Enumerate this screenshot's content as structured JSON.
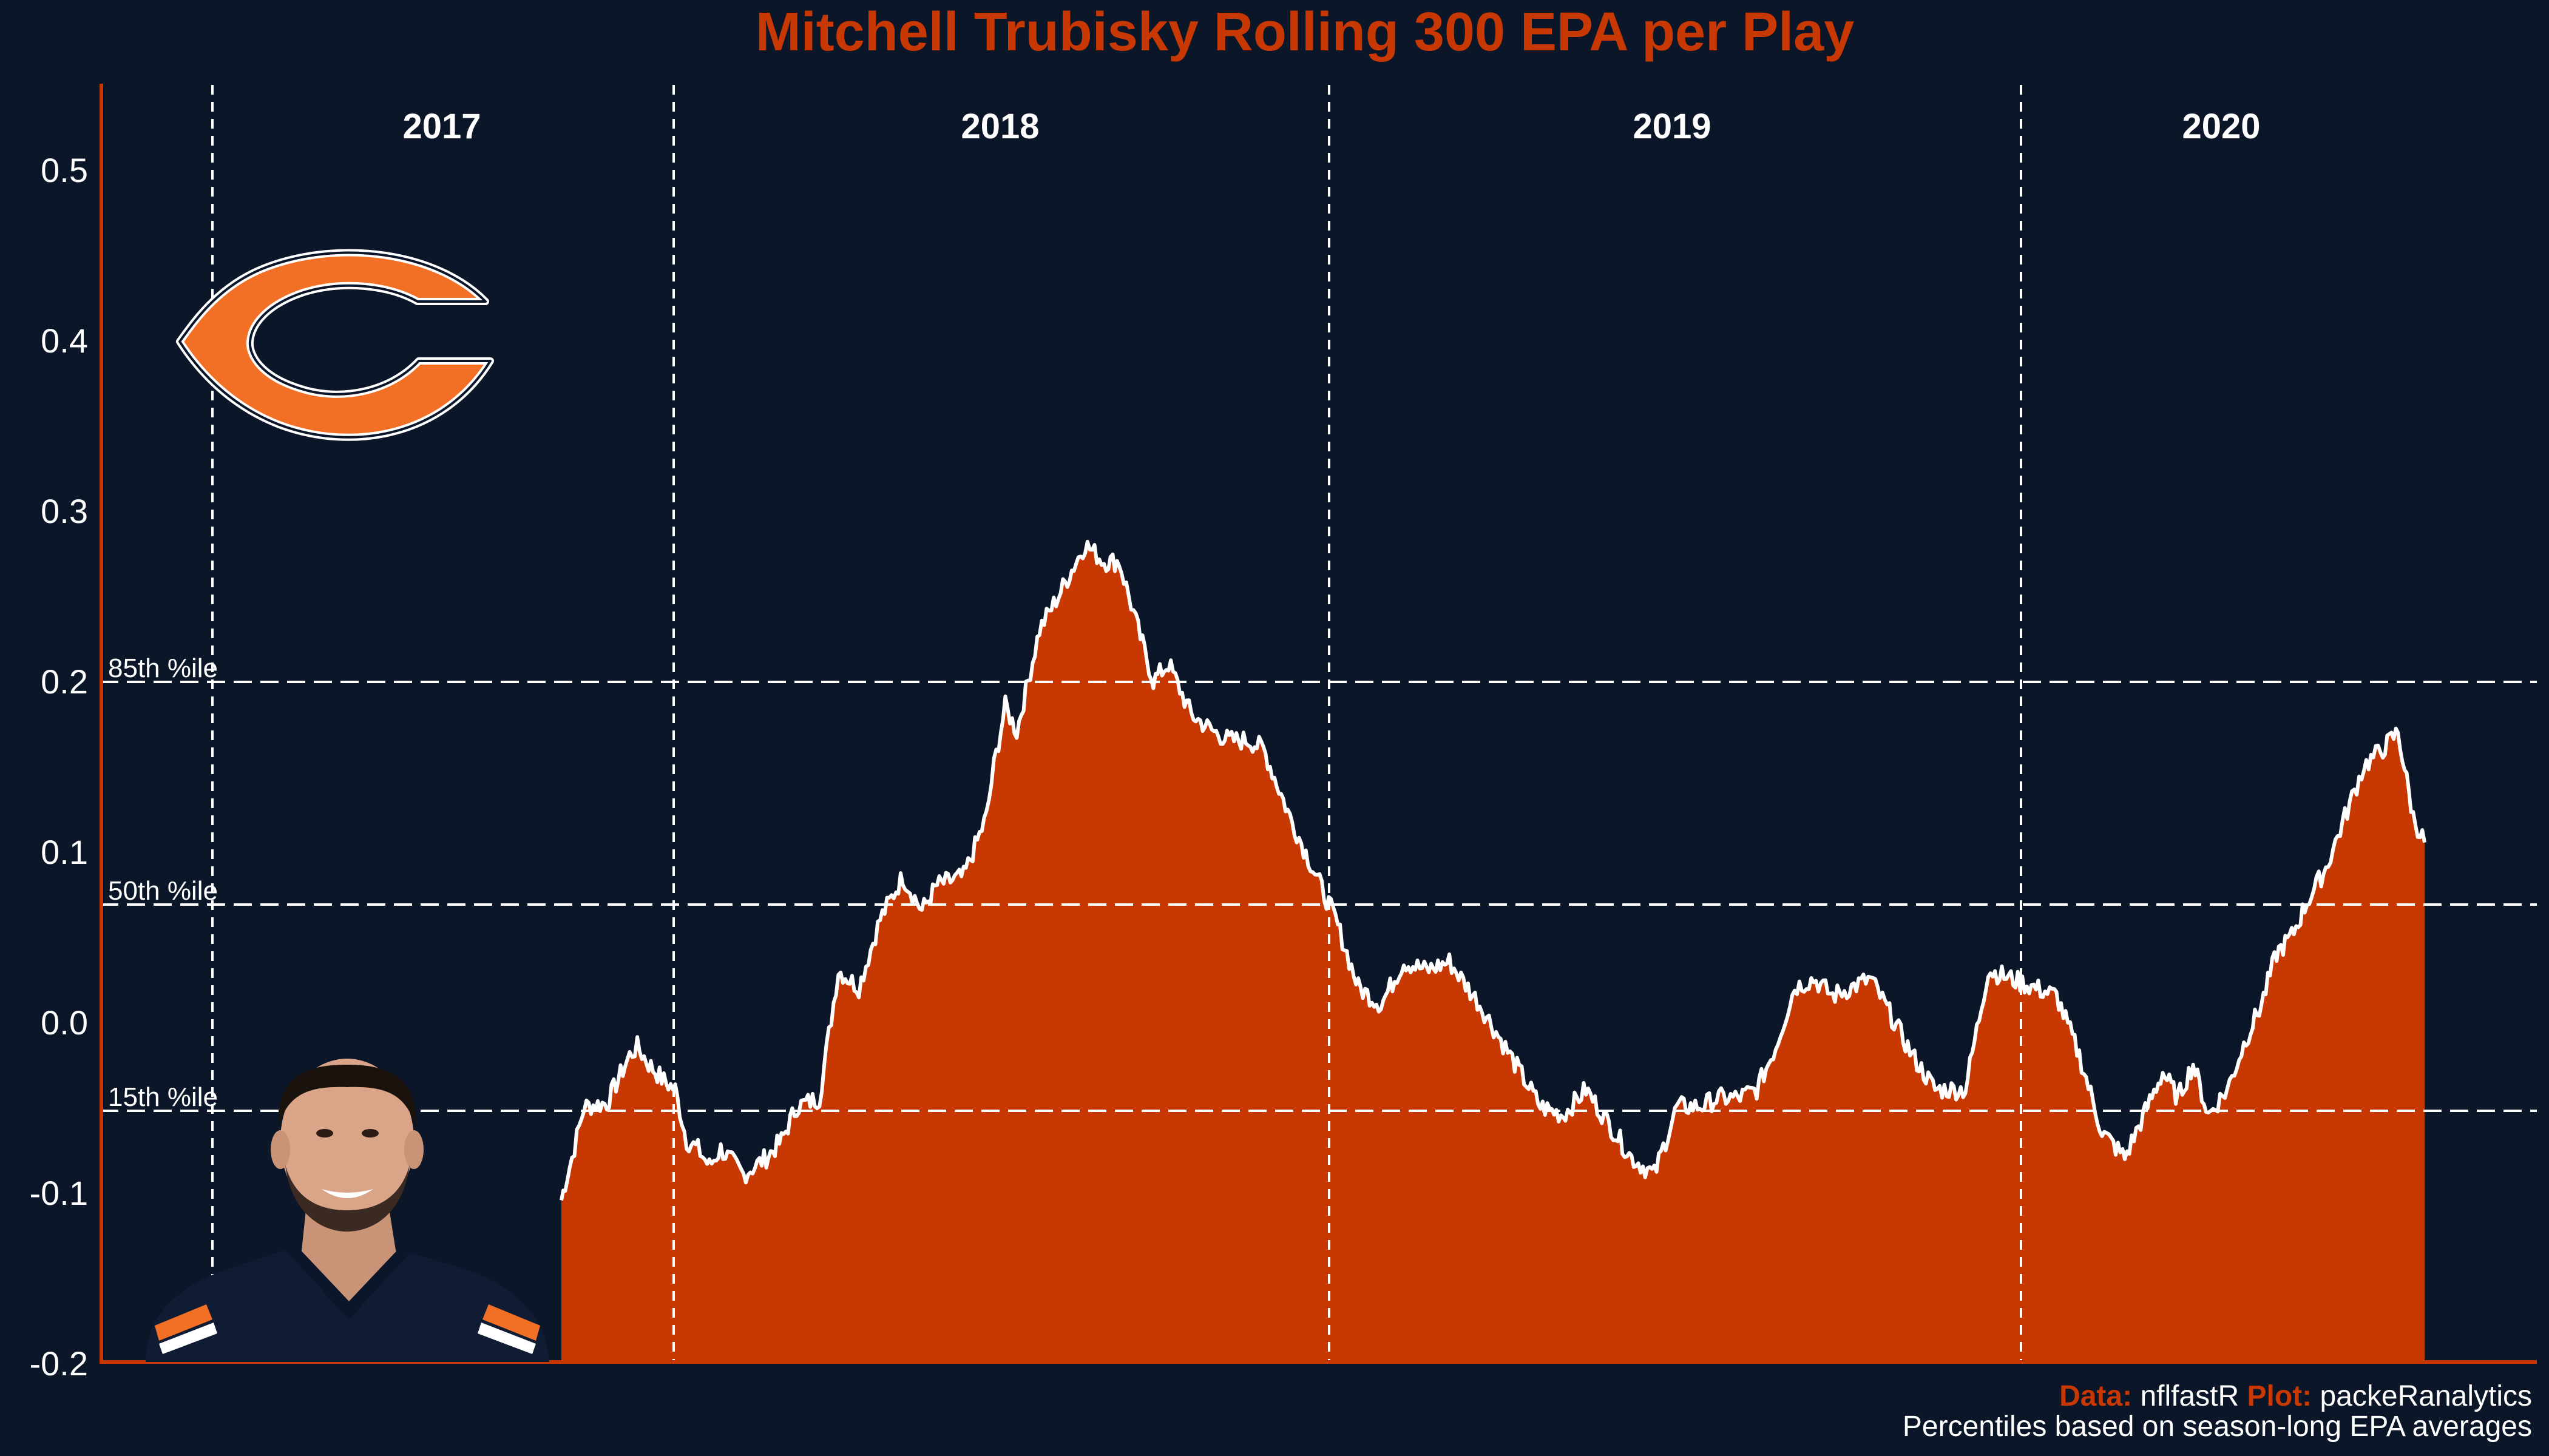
{
  "chart_data": {
    "type": "area",
    "title": "Mitchell Trubisky Rolling 300 EPA per Play",
    "ylim": [
      -0.2,
      0.55
    ],
    "yticks": [
      "0.5",
      "0.4",
      "0.3",
      "0.2",
      "0.1",
      "0.0",
      "-0.1",
      "-0.2"
    ],
    "seasons": [
      "2017",
      "2018",
      "2019",
      "2020"
    ],
    "percentiles": [
      {
        "label": "85th %ile",
        "value": 0.2
      },
      {
        "label": "50th %ile",
        "value": 0.069
      },
      {
        "label": "15th %ile",
        "value": -0.052
      }
    ],
    "series": [
      {
        "x": [
          0,
          5,
          14,
          30,
          60,
          90,
          100,
          115,
          135,
          150,
          165,
          180,
          195,
          210,
          240,
          270,
          290,
          310,
          340,
          365,
          392,
          420,
          450,
          475,
          495,
          530,
          560,
          570,
          585,
          600,
          630,
          655,
          690,
          715,
          735,
          760,
          780,
          800,
          830,
          860,
          880,
          905,
          925,
          960,
          990,
          1020,
          1050,
          1080,
          1110,
          1140,
          1170,
          1210,
          1250,
          1290,
          1320,
          1350,
          1380,
          1410,
          1440,
          1470,
          1500,
          1525,
          1550,
          1575,
          1600,
          1625,
          1650,
          1675,
          1700,
          1725,
          1750,
          1780,
          1810,
          1850,
          1880,
          1910,
          1940,
          1970,
          2000,
          2030,
          2060,
          2090,
          2110,
          2130,
          2150,
          2170,
          2195,
          2220,
          2240,
          2260,
          2280,
          2300,
          2325,
          2350,
          2375,
          2400,
          2420,
          2440,
          2455
        ],
        "values": [
          -0.105,
          -0.095,
          -0.08,
          -0.05,
          -0.048,
          -0.02,
          -0.015,
          -0.025,
          -0.035,
          -0.04,
          -0.07,
          -0.075,
          -0.085,
          -0.075,
          -0.09,
          -0.08,
          -0.07,
          -0.05,
          -0.045,
          0.03,
          0.02,
          0.06,
          0.085,
          0.065,
          0.08,
          0.085,
          0.12,
          0.15,
          0.185,
          0.17,
          0.23,
          0.25,
          0.28,
          0.27,
          0.27,
          0.23,
          0.2,
          0.21,
          0.18,
          0.17,
          0.165,
          0.165,
          0.16,
          0.12,
          0.09,
          0.06,
          0.02,
          0.01,
          0.035,
          0.03,
          0.035,
          0.01,
          -0.02,
          -0.05,
          -0.055,
          -0.04,
          -0.06,
          -0.08,
          -0.09,
          -0.05,
          -0.05,
          -0.045,
          -0.045,
          -0.04,
          -0.015,
          0.02,
          0.025,
          0.015,
          0.02,
          0.025,
          0.005,
          -0.02,
          -0.04,
          -0.04,
          0.03,
          0.025,
          0.02,
          0.015,
          -0.02,
          -0.065,
          -0.08,
          -0.05,
          -0.03,
          -0.045,
          -0.025,
          -0.055,
          -0.04,
          -0.01,
          0.01,
          0.04,
          0.05,
          0.07,
          0.09,
          0.12,
          0.15,
          0.16,
          0.17,
          0.12,
          0.105
        ]
      }
    ]
  },
  "caption": {
    "data_label": "Data:",
    "data_source": "nflfastR",
    "plot_label": "Plot:",
    "plot_author": "packeRanalytics",
    "note": "Percentiles based on season-long EPA averages"
  },
  "colors": {
    "background": "#0b1628",
    "accent": "#c83803",
    "line": "#ffffff",
    "logo_orange": "#f26f26",
    "logo_navy": "#0b162a"
  },
  "images": {
    "logo": "chicago-bears-logo",
    "headshot": "mitchell-trubisky-headshot"
  }
}
